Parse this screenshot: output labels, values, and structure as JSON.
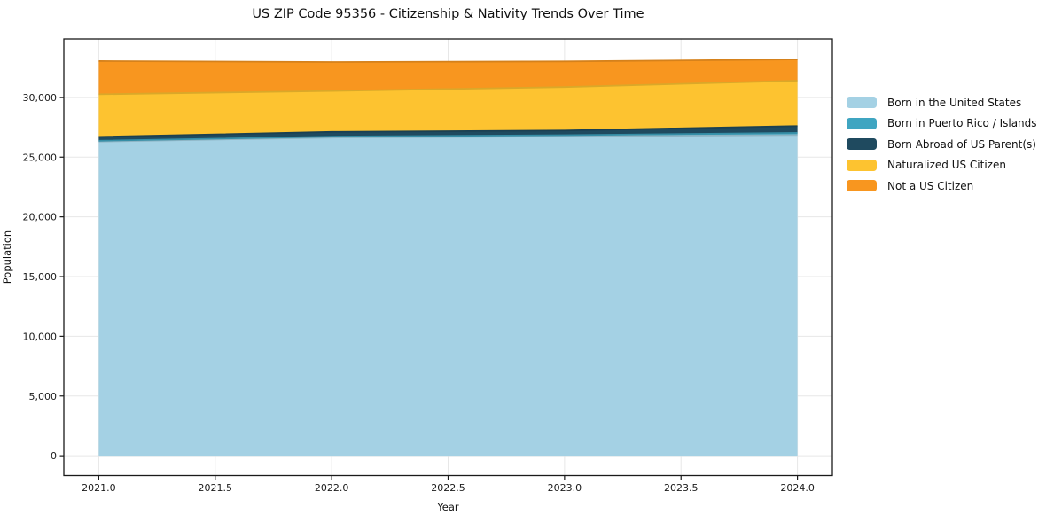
{
  "title": "US ZIP Code 95356 - Citizenship & Nativity Trends Over Time",
  "chart_data": {
    "type": "area",
    "stacked": true,
    "title": "US ZIP Code 95356 - Citizenship & Nativity Trends Over Time",
    "xlabel": "Year",
    "ylabel": "Population",
    "x": [
      2021,
      2022,
      2023,
      2024
    ],
    "series": [
      {
        "name": "Born in the United States",
        "color": "#a4d1e4",
        "values": [
          26300,
          26640,
          26740,
          26850
        ]
      },
      {
        "name": "Born in Puerto Rico / Islands",
        "color": "#3fa5c1",
        "values": [
          70,
          80,
          100,
          180
        ]
      },
      {
        "name": "Born Abroad of US Parent(s)",
        "color": "#1f4a5f",
        "values": [
          330,
          390,
          390,
          570
        ]
      },
      {
        "name": "Naturalized US Citizen",
        "color": "#fdc330",
        "values": [
          3560,
          3430,
          3640,
          3800
        ]
      },
      {
        "name": "Not a US Citizen",
        "color": "#f8961f",
        "values": [
          2780,
          2420,
          2140,
          1780
        ]
      }
    ],
    "xticks": {
      "values": [
        2021.0,
        2021.5,
        2022.0,
        2022.5,
        2023.0,
        2023.5,
        2024.0
      ],
      "labels": [
        "2021.0",
        "2021.5",
        "2022.0",
        "2022.5",
        "2023.0",
        "2023.5",
        "2024.0"
      ]
    },
    "yticks": {
      "values": [
        0,
        5000,
        10000,
        15000,
        20000,
        25000,
        30000
      ],
      "labels": [
        "0",
        "5,000",
        "10,000",
        "15,000",
        "20,000",
        "25,000",
        "30,000"
      ]
    },
    "xlim": [
      2020.85,
      2024.15
    ],
    "ylim": [
      -1660,
      34890
    ],
    "grid": true,
    "grid_color": "#e7e7e7",
    "axis_color": "#1a1a1a",
    "legend_position": "right-outside",
    "background": "#ffffff"
  }
}
